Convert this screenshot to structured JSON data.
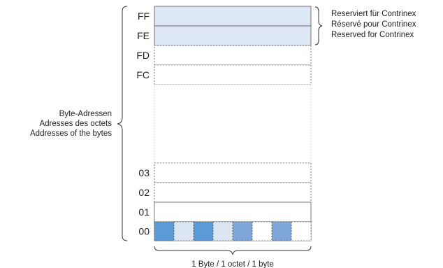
{
  "memory": {
    "addresses": [
      {
        "label": "FF",
        "reserved": true
      },
      {
        "label": "FE",
        "reserved": true
      },
      {
        "label": "FD",
        "reserved": false
      },
      {
        "label": "FC",
        "reserved": false
      },
      {
        "label": "",
        "reserved": false,
        "gap": true
      },
      {
        "label": "03",
        "reserved": false
      },
      {
        "label": "02",
        "reserved": false
      },
      {
        "label": "01",
        "reserved": false
      },
      {
        "label": "00",
        "reserved": false,
        "bits": true
      }
    ],
    "bit_colors": [
      "#5b9bd5",
      "#dce6f2",
      "#5b9bd5",
      "#dce6f2",
      "#7ea6d8",
      "#ffffff",
      "#7ea6d8",
      "#ffffff"
    ]
  },
  "reserved_note": [
    "Reserviert für Contrinex",
    "Réservé pour Contrinex",
    "Reserved for Contrinex"
  ],
  "byte_address_label": [
    "Byte-Adressen",
    "Adresses des octets",
    "Addresses of the bytes"
  ],
  "byte_width_label": "1 Byte / 1 octet / 1 byte",
  "colors": {
    "reserved_fill": "#dce6f4",
    "line": "#555555"
  }
}
